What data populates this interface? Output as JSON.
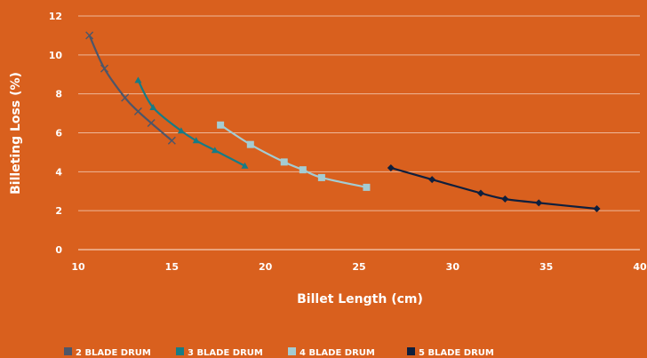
{
  "chart_data": {
    "type": "line",
    "xlabel": "Billet Length (cm)",
    "ylabel": "Billeting Loss (%)",
    "xlim": [
      10,
      40
    ],
    "ylim": [
      0,
      12
    ],
    "xticks": [
      10,
      15,
      20,
      25,
      30,
      35,
      40
    ],
    "yticks": [
      0,
      2,
      4,
      6,
      8,
      10,
      12
    ],
    "grid": "horizontal",
    "legend_position": "bottom",
    "series": [
      {
        "name": "2 BLADE DRUM",
        "color": "#4d5669",
        "marker": "x",
        "x": [
          10.6,
          11.4,
          12.5,
          13.2,
          13.9,
          15.0
        ],
        "y": [
          11.0,
          9.3,
          7.8,
          7.1,
          6.5,
          5.6
        ]
      },
      {
        "name": "3 BLADE DRUM",
        "color": "#177c86",
        "marker": "triangle",
        "x": [
          13.2,
          14.0,
          15.5,
          16.3,
          17.3,
          18.9
        ],
        "y": [
          8.7,
          7.3,
          6.1,
          5.6,
          5.1,
          4.3
        ]
      },
      {
        "name": "4 BLADE DRUM",
        "color": "#a4ccd3",
        "marker": "square",
        "x": [
          17.6,
          19.2,
          21.0,
          22.0,
          23.0,
          25.4
        ],
        "y": [
          6.4,
          5.4,
          4.5,
          4.1,
          3.7,
          3.2
        ]
      },
      {
        "name": "5 BLADE DRUM",
        "color": "#0f1f3d",
        "marker": "diamond",
        "x": [
          26.7,
          28.9,
          31.5,
          32.8,
          34.6,
          37.7
        ],
        "y": [
          4.2,
          3.6,
          2.9,
          2.6,
          2.4,
          2.1
        ]
      }
    ]
  }
}
